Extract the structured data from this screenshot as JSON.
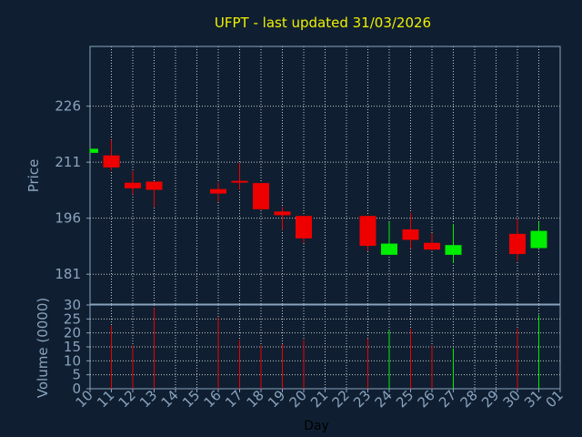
{
  "chart_data": [
    {
      "type": "candlestick",
      "title": "UFPT - last updated 31/03/2026",
      "ylabel": "Price",
      "ylim": [
        173,
        242
      ],
      "yticks": [
        181,
        196,
        211,
        226
      ],
      "colors": {
        "up": "#00ee00",
        "down": "#ee0000",
        "background": "#0f1f31",
        "grid": "#c8c8c8",
        "axis": "#8aa3bd",
        "title": "#f0f000"
      },
      "candles": [
        {
          "day": "10",
          "open": 213.5,
          "high": 214.6,
          "low": 213.5,
          "close": 214.6
        },
        {
          "day": "11",
          "open": 212.8,
          "high": 217.0,
          "low": 208.8,
          "close": 209.6
        },
        {
          "day": "12",
          "open": 205.5,
          "high": 208.6,
          "low": 202.4,
          "close": 204.0
        },
        {
          "day": "13",
          "open": 205.8,
          "high": 205.8,
          "low": 199.0,
          "close": 203.6
        },
        {
          "day": "16",
          "open": 203.8,
          "high": 205.6,
          "low": 200.4,
          "close": 202.6
        },
        {
          "day": "17",
          "open": 206.0,
          "high": 210.8,
          "low": 203.6,
          "close": 205.6
        },
        {
          "day": "18",
          "open": 205.4,
          "high": 205.4,
          "low": 198.2,
          "close": 198.4
        },
        {
          "day": "19",
          "open": 197.8,
          "high": 199.0,
          "low": 192.8,
          "close": 196.8
        },
        {
          "day": "20",
          "open": 196.6,
          "high": 196.6,
          "low": 189.4,
          "close": 190.6
        },
        {
          "day": "23",
          "open": 196.6,
          "high": 196.6,
          "low": 187.2,
          "close": 188.6
        },
        {
          "day": "24",
          "open": 186.2,
          "high": 195.0,
          "low": 186.2,
          "close": 189.2
        },
        {
          "day": "25",
          "open": 193.0,
          "high": 197.4,
          "low": 187.8,
          "close": 190.2
        },
        {
          "day": "26",
          "open": 189.4,
          "high": 192.0,
          "low": 187.4,
          "close": 187.6
        },
        {
          "day": "27",
          "open": 186.2,
          "high": 194.4,
          "low": 184.0,
          "close": 188.8
        },
        {
          "day": "30",
          "open": 191.8,
          "high": 195.8,
          "low": 184.6,
          "close": 186.4
        },
        {
          "day": "31",
          "open": 188.0,
          "high": 195.0,
          "low": 188.0,
          "close": 192.6
        }
      ]
    },
    {
      "type": "bar",
      "ylabel": "Volume (0000)",
      "xlabel": "Day",
      "ylim": [
        0,
        30
      ],
      "yticks": [
        0,
        5,
        10,
        15,
        20,
        25,
        30
      ],
      "categories": [
        "10",
        "11",
        "12",
        "13",
        "14",
        "15",
        "16",
        "17",
        "18",
        "19",
        "20",
        "21",
        "22",
        "23",
        "24",
        "25",
        "26",
        "27",
        "28",
        "29",
        "30",
        "31",
        "01"
      ],
      "volumes": [
        {
          "day": "11",
          "value": 22.5,
          "direction": "down"
        },
        {
          "day": "12",
          "value": 15.5,
          "direction": "down"
        },
        {
          "day": "13",
          "value": 29,
          "direction": "down"
        },
        {
          "day": "16",
          "value": 25.5,
          "direction": "down"
        },
        {
          "day": "17",
          "value": 17.5,
          "direction": "down"
        },
        {
          "day": "18",
          "value": 15.5,
          "direction": "down"
        },
        {
          "day": "19",
          "value": 16,
          "direction": "down"
        },
        {
          "day": "20",
          "value": 17.5,
          "direction": "down"
        },
        {
          "day": "23",
          "value": 18,
          "direction": "down"
        },
        {
          "day": "24",
          "value": 21,
          "direction": "up"
        },
        {
          "day": "25",
          "value": 21.5,
          "direction": "down"
        },
        {
          "day": "26",
          "value": 15.5,
          "direction": "down"
        },
        {
          "day": "27",
          "value": 14.5,
          "direction": "up"
        },
        {
          "day": "30",
          "value": 21.5,
          "direction": "down"
        },
        {
          "day": "31",
          "value": 26.5,
          "direction": "up"
        }
      ]
    }
  ]
}
